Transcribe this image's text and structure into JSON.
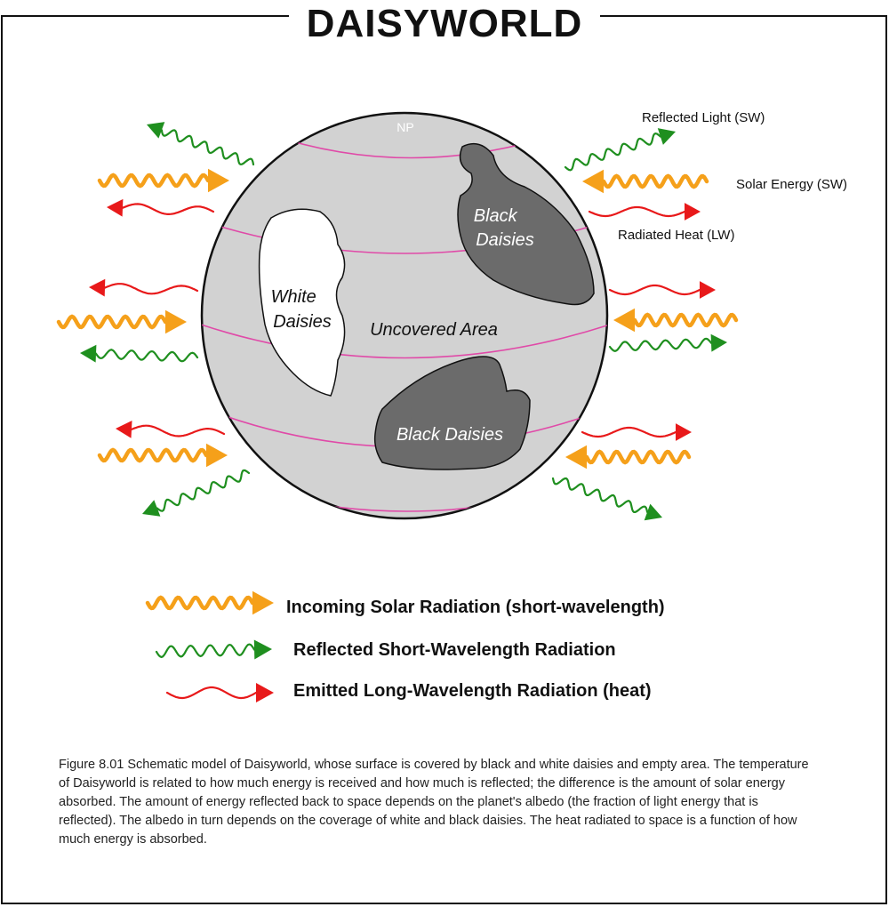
{
  "title": "DAISYWORLD",
  "globe": {
    "pole_label": "NP",
    "black_daisies_upper": [
      "Black",
      "Daisies"
    ],
    "white_daisies": [
      "White",
      "Daisies"
    ],
    "uncovered_area": "Uncovered Area",
    "black_daisies_lower": "Black Daisies"
  },
  "side_labels": {
    "reflected": "Reflected Light (SW)",
    "solar": "Solar Energy (SW)",
    "radiated": "Radiated Heat (LW)"
  },
  "legend": {
    "incoming": "Incoming Solar Radiation (short-wavelength)",
    "reflected": "Reflected Short-Wavelength Radiation",
    "emitted": "Emitted Long-Wavelength Radiation (heat)"
  },
  "caption": "Figure 8.01  Schematic model of Daisyworld, whose surface is covered by black and white daisies and empty area.  The temperature of Daisyworld is related to how much energy is received and how much is reflected; the difference is the amount of solar energy absorbed.  The amount of energy reflected back to space depends on the planet's albedo (the fraction of light energy that is reflected).  The albedo in turn depends on the coverage of white and black daisies.  The heat radiated to space is a function of how much energy is absorbed.",
  "colors": {
    "solar": "#f5a01a",
    "reflected": "#1f8f1f",
    "heat": "#e8191a",
    "globe": "#d2d2d2",
    "black_daisies": "#6b6b6b",
    "latitude": "#e04aa8"
  }
}
